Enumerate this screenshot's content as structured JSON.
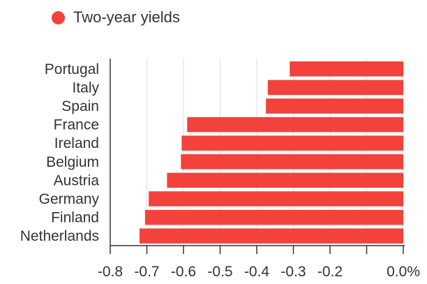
{
  "chart_data": {
    "type": "bar",
    "orientation": "horizontal",
    "title": "",
    "xlabel": "",
    "ylabel": "",
    "legend": {
      "label": "Two-year yields",
      "position": "top-left"
    },
    "color": "#f2423b",
    "categories": [
      "Portugal",
      "Italy",
      "Spain",
      "France",
      "Ireland",
      "Belgium",
      "Austria",
      "Germany",
      "Finland",
      "Netherlands"
    ],
    "series": [
      {
        "name": "Two-year yields",
        "values": [
          -0.31,
          -0.37,
          -0.375,
          -0.59,
          -0.605,
          -0.607,
          -0.645,
          -0.695,
          -0.705,
          -0.72
        ]
      }
    ],
    "xlim": [
      -0.8,
      0.0
    ],
    "ticks": [
      {
        "value": -0.8,
        "label": "-0.8"
      },
      {
        "value": -0.7,
        "label": "-0.7"
      },
      {
        "value": -0.6,
        "label": "-0.6"
      },
      {
        "value": -0.5,
        "label": "-0.5"
      },
      {
        "value": -0.4,
        "label": "-0.4"
      },
      {
        "value": -0.3,
        "label": "-0.3"
      },
      {
        "value": -0.2,
        "label": "-0.2"
      },
      {
        "value": -0.1,
        "label": ""
      },
      {
        "value": 0.0,
        "label": "0.0%"
      }
    ],
    "grid": true
  }
}
